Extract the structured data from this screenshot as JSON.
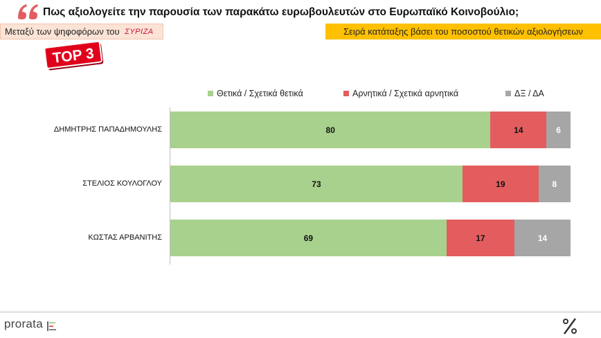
{
  "header": {
    "title": "Πως αξιολογείτε την παρουσία των παρακάτω ευρωβουλευτών στο Ευρωπαϊκό Κοινοβούλιο;",
    "subtitle_left": "Μεταξύ των ψηφοφόρων του",
    "party_logo_text": "ΣΥΡΙΖΑ",
    "subtitle_right": "Σειρά κατάταξης βάσει του ποσοστού θετικών αξιολογήσεων",
    "badge": "TOP 3"
  },
  "footer": {
    "logo": "prorata"
  },
  "colors": {
    "positive": "#a9d18e",
    "negative": "#e35d5f",
    "dk": "#a6a6a6",
    "badge": "#e0001b"
  },
  "chart_data": {
    "type": "bar",
    "orientation": "horizontal",
    "stacked": true,
    "categories": [
      "ΔΗΜΗΤΡΗΣ ΠΑΠΑΔΗΜΟΥΛΗΣ",
      "ΣΤΕΛΙΟΣ ΚΟΥΛΟΓΛΟΥ",
      "ΚΩΣΤΑΣ ΑΡΒΑΝΙΤΗΣ"
    ],
    "series": [
      {
        "name": "Θετικά / Σχετικά θετικά",
        "color": "#a9d18e",
        "values": [
          80,
          73,
          69
        ]
      },
      {
        "name": "Αρνητικά / Σχετικά αρνητικά",
        "color": "#e35d5f",
        "values": [
          14,
          19,
          17
        ]
      },
      {
        "name": "ΔΞ / ΔΑ",
        "color": "#a6a6a6",
        "values": [
          6,
          8,
          14
        ]
      }
    ],
    "xlim": [
      0,
      100
    ],
    "data_labels": true,
    "legend_position": "top",
    "grid": false
  }
}
